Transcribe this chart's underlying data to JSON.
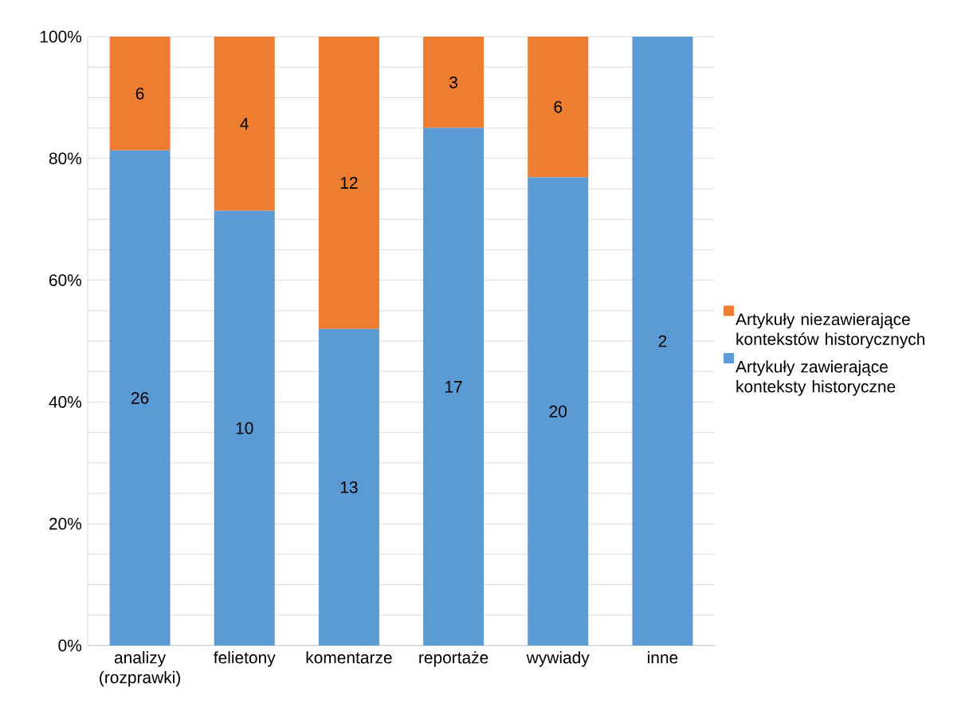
{
  "chart_data": {
    "type": "bar",
    "stacked": true,
    "categories": [
      "analizy (rozprawki)",
      "felietony",
      "komentarze",
      "reportaże",
      "wywiady",
      "inne"
    ],
    "series": [
      {
        "name": "Artykuły zawierające konteksty historyczne",
        "color": "#5b9bd5",
        "values": [
          81.3,
          71.4,
          52.0,
          85.0,
          76.9,
          100.0
        ]
      },
      {
        "name": "Artykuły niezawierające kontekstów historycznych",
        "color": "#ed7d31",
        "values": [
          18.7,
          28.6,
          48.0,
          15.0,
          23.1,
          0.0
        ]
      }
    ],
    "annotations": [
      "26",
      "10",
      "13",
      "17",
      "20",
      "2",
      "6",
      "4",
      "12",
      "3",
      "6"
    ],
    "ylim": [
      0,
      100
    ],
    "yticks": [
      {
        "value": 0,
        "label": "0%"
      },
      {
        "value": 5,
        "label": null
      },
      {
        "value": 10,
        "label": null
      },
      {
        "value": 15,
        "label": null
      },
      {
        "value": 20,
        "label": "20%"
      },
      {
        "value": 25,
        "label": null
      },
      {
        "value": 30,
        "label": null
      },
      {
        "value": 35,
        "label": null
      },
      {
        "value": 40,
        "label": "40%"
      },
      {
        "value": 45,
        "label": null
      },
      {
        "value": 50,
        "label": null
      },
      {
        "value": 55,
        "label": null
      },
      {
        "value": 60,
        "label": "60%"
      },
      {
        "value": 65,
        "label": null
      },
      {
        "value": 70,
        "label": null
      },
      {
        "value": 75,
        "label": null
      },
      {
        "value": 80,
        "label": "80%"
      },
      {
        "value": 85,
        "label": null
      },
      {
        "value": 90,
        "label": null
      },
      {
        "value": 95,
        "label": null
      },
      {
        "value": 100,
        "label": "100%"
      }
    ],
    "grid": "y",
    "legend": "right"
  }
}
